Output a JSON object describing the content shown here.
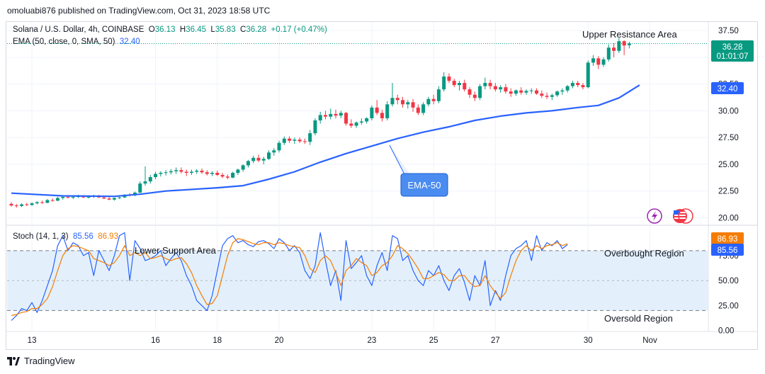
{
  "publisher": "omoluabi876 published on TradingView.com, Oct 31, 2023 18:58 UTC",
  "legend": {
    "symbol": "Solana / U.S. Dollar, 4h, COINBASE",
    "o_label": "O",
    "o": "36.13",
    "h_label": "H",
    "h": "36.45",
    "l_label": "L",
    "l": "35.83",
    "c_label": "C",
    "c": "36.28",
    "change": "+0.17 (+0.47%)",
    "ema_text": "EMA (50, close, 0, SMA, 50)",
    "ema_value": "32.40",
    "stoch_text": "Stoch (14, 1, 3)",
    "stoch_k": "85.56",
    "stoch_d": "86.93"
  },
  "annotations": {
    "upper_resistance": "Upper Resistance Area",
    "lower_support": "Lower Support Area",
    "overbought": "Overbought Region",
    "oversold": "Oversold Region",
    "ema_callout": "EMA-50"
  },
  "price_badges": {
    "last_price": "36.28",
    "countdown": "01:01:07",
    "ema_badge": "32.40"
  },
  "stoch_badges": {
    "d": "86.93",
    "k": "85.56"
  },
  "footer": {
    "brand": "TradingView"
  },
  "colors": {
    "up": "#089981",
    "down": "#f23645",
    "ema": "#2962ff",
    "stoch_k": "#2962ff",
    "stoch_d": "#f57c00",
    "band_fill": "#e3f0fb"
  },
  "icons": [
    "lightning-icon",
    "us-flag-icon",
    "tradingview-logo-icon"
  ],
  "chart_data": [
    {
      "type": "candlestick",
      "title": "Solana / U.S. Dollar, 4h, COINBASE",
      "x_ticks": [
        {
          "label": "13",
          "bar": 4
        },
        {
          "label": "16",
          "bar": 28
        },
        {
          "label": "18",
          "bar": 40
        },
        {
          "label": "20",
          "bar": 52
        },
        {
          "label": "23",
          "bar": 70
        },
        {
          "label": "25",
          "bar": 82
        },
        {
          "label": "27",
          "bar": 94
        },
        {
          "label": "30",
          "bar": 112
        },
        {
          "label": "Nov",
          "bar": 124
        }
      ],
      "y_ticks": [
        "20.00",
        "22.50",
        "25.00",
        "27.50",
        "30.00",
        "32.50",
        "35.00",
        "37.50"
      ],
      "ylim": [
        19.3,
        38.3
      ],
      "candles": [
        {
          "o": 21.3,
          "h": 21.45,
          "l": 21.05,
          "c": 21.15
        },
        {
          "o": 21.15,
          "h": 21.3,
          "l": 20.95,
          "c": 21.1
        },
        {
          "o": 21.1,
          "h": 21.35,
          "l": 21.0,
          "c": 21.25
        },
        {
          "o": 21.25,
          "h": 21.4,
          "l": 21.1,
          "c": 21.2
        },
        {
          "o": 21.2,
          "h": 21.45,
          "l": 21.1,
          "c": 21.35
        },
        {
          "o": 21.35,
          "h": 21.55,
          "l": 21.25,
          "c": 21.45
        },
        {
          "o": 21.45,
          "h": 21.6,
          "l": 21.3,
          "c": 21.4
        },
        {
          "o": 21.4,
          "h": 21.75,
          "l": 21.35,
          "c": 21.65
        },
        {
          "o": 21.65,
          "h": 21.8,
          "l": 21.5,
          "c": 21.6
        },
        {
          "o": 21.6,
          "h": 21.95,
          "l": 21.55,
          "c": 21.85
        },
        {
          "o": 21.85,
          "h": 22.0,
          "l": 21.7,
          "c": 21.95
        },
        {
          "o": 21.95,
          "h": 22.1,
          "l": 21.8,
          "c": 21.9
        },
        {
          "o": 21.9,
          "h": 22.05,
          "l": 21.75,
          "c": 21.95
        },
        {
          "o": 21.95,
          "h": 22.15,
          "l": 21.85,
          "c": 22.0
        },
        {
          "o": 22.0,
          "h": 22.1,
          "l": 21.85,
          "c": 21.9
        },
        {
          "o": 21.9,
          "h": 22.05,
          "l": 21.8,
          "c": 21.95
        },
        {
          "o": 21.95,
          "h": 22.15,
          "l": 21.85,
          "c": 22.05
        },
        {
          "o": 22.05,
          "h": 22.15,
          "l": 21.85,
          "c": 21.9
        },
        {
          "o": 21.9,
          "h": 22.0,
          "l": 21.75,
          "c": 21.8
        },
        {
          "o": 21.8,
          "h": 21.95,
          "l": 21.65,
          "c": 21.7
        },
        {
          "o": 21.7,
          "h": 21.9,
          "l": 21.6,
          "c": 21.85
        },
        {
          "o": 21.85,
          "h": 22.0,
          "l": 21.75,
          "c": 21.9
        },
        {
          "o": 21.9,
          "h": 22.2,
          "l": 21.85,
          "c": 22.15
        },
        {
          "o": 22.15,
          "h": 22.3,
          "l": 22.0,
          "c": 22.1
        },
        {
          "o": 22.1,
          "h": 22.45,
          "l": 22.0,
          "c": 22.35
        },
        {
          "o": 22.35,
          "h": 23.4,
          "l": 22.3,
          "c": 23.2
        },
        {
          "o": 23.2,
          "h": 24.8,
          "l": 23.0,
          "c": 23.4
        },
        {
          "o": 23.4,
          "h": 24.0,
          "l": 23.2,
          "c": 23.8
        },
        {
          "o": 23.8,
          "h": 24.3,
          "l": 23.6,
          "c": 24.1
        },
        {
          "o": 24.1,
          "h": 24.35,
          "l": 23.85,
          "c": 24.2
        },
        {
          "o": 24.2,
          "h": 24.45,
          "l": 23.95,
          "c": 24.25
        },
        {
          "o": 24.25,
          "h": 24.55,
          "l": 24.05,
          "c": 24.35
        },
        {
          "o": 24.35,
          "h": 24.7,
          "l": 24.1,
          "c": 24.45
        },
        {
          "o": 24.45,
          "h": 24.7,
          "l": 24.15,
          "c": 24.3
        },
        {
          "o": 24.3,
          "h": 24.5,
          "l": 23.9,
          "c": 24.2
        },
        {
          "o": 24.2,
          "h": 24.5,
          "l": 24.0,
          "c": 24.3
        },
        {
          "o": 24.3,
          "h": 24.55,
          "l": 24.1,
          "c": 24.4
        },
        {
          "o": 24.4,
          "h": 24.6,
          "l": 24.1,
          "c": 24.25
        },
        {
          "o": 24.25,
          "h": 24.45,
          "l": 23.95,
          "c": 24.1
        },
        {
          "o": 24.1,
          "h": 24.35,
          "l": 23.9,
          "c": 24.2
        },
        {
          "o": 24.2,
          "h": 24.4,
          "l": 23.9,
          "c": 24.0
        },
        {
          "o": 24.0,
          "h": 24.2,
          "l": 23.7,
          "c": 23.85
        },
        {
          "o": 23.85,
          "h": 24.05,
          "l": 23.6,
          "c": 23.75
        },
        {
          "o": 23.75,
          "h": 24.3,
          "l": 23.7,
          "c": 24.2
        },
        {
          "o": 24.2,
          "h": 24.6,
          "l": 24.0,
          "c": 24.5
        },
        {
          "o": 24.5,
          "h": 25.0,
          "l": 24.3,
          "c": 24.9
        },
        {
          "o": 24.9,
          "h": 25.4,
          "l": 24.7,
          "c": 25.3
        },
        {
          "o": 25.3,
          "h": 25.8,
          "l": 25.1,
          "c": 25.6
        },
        {
          "o": 25.6,
          "h": 25.9,
          "l": 25.2,
          "c": 25.35
        },
        {
          "o": 25.35,
          "h": 25.7,
          "l": 25.0,
          "c": 25.5
        },
        {
          "o": 25.5,
          "h": 26.3,
          "l": 25.4,
          "c": 26.1
        },
        {
          "o": 26.1,
          "h": 26.5,
          "l": 25.8,
          "c": 26.3
        },
        {
          "o": 26.3,
          "h": 27.2,
          "l": 26.1,
          "c": 27.0
        },
        {
          "o": 27.0,
          "h": 27.6,
          "l": 26.8,
          "c": 27.4
        },
        {
          "o": 27.4,
          "h": 27.6,
          "l": 27.0,
          "c": 27.2
        },
        {
          "o": 27.2,
          "h": 27.5,
          "l": 26.9,
          "c": 27.3
        },
        {
          "o": 27.3,
          "h": 27.5,
          "l": 27.0,
          "c": 27.15
        },
        {
          "o": 27.15,
          "h": 27.4,
          "l": 26.9,
          "c": 27.1
        },
        {
          "o": 27.1,
          "h": 28.2,
          "l": 26.8,
          "c": 27.9
        },
        {
          "o": 27.9,
          "h": 29.3,
          "l": 27.7,
          "c": 29.1
        },
        {
          "o": 29.1,
          "h": 29.9,
          "l": 28.8,
          "c": 29.6
        },
        {
          "o": 29.6,
          "h": 30.0,
          "l": 29.2,
          "c": 29.45
        },
        {
          "o": 29.45,
          "h": 30.2,
          "l": 29.2,
          "c": 29.7
        },
        {
          "o": 29.7,
          "h": 30.1,
          "l": 29.3,
          "c": 29.55
        },
        {
          "o": 29.55,
          "h": 30.0,
          "l": 29.3,
          "c": 29.8
        },
        {
          "o": 29.8,
          "h": 29.9,
          "l": 28.6,
          "c": 28.8
        },
        {
          "o": 28.8,
          "h": 29.2,
          "l": 28.4,
          "c": 28.6
        },
        {
          "o": 28.6,
          "h": 29.0,
          "l": 28.4,
          "c": 28.9
        },
        {
          "o": 28.9,
          "h": 29.3,
          "l": 28.7,
          "c": 29.0
        },
        {
          "o": 29.0,
          "h": 29.4,
          "l": 28.8,
          "c": 29.3
        },
        {
          "o": 29.3,
          "h": 30.5,
          "l": 29.1,
          "c": 30.3
        },
        {
          "o": 30.3,
          "h": 31.0,
          "l": 29.6,
          "c": 29.8
        },
        {
          "o": 29.8,
          "h": 30.1,
          "l": 29.0,
          "c": 29.3
        },
        {
          "o": 29.3,
          "h": 30.9,
          "l": 29.1,
          "c": 30.6
        },
        {
          "o": 30.6,
          "h": 32.6,
          "l": 30.4,
          "c": 31.2
        },
        {
          "o": 31.2,
          "h": 31.5,
          "l": 30.6,
          "c": 31.0
        },
        {
          "o": 31.0,
          "h": 31.3,
          "l": 30.3,
          "c": 30.6
        },
        {
          "o": 30.6,
          "h": 31.0,
          "l": 30.2,
          "c": 30.8
        },
        {
          "o": 30.8,
          "h": 31.1,
          "l": 29.9,
          "c": 30.3
        },
        {
          "o": 30.3,
          "h": 30.6,
          "l": 29.6,
          "c": 29.8
        },
        {
          "o": 29.8,
          "h": 30.8,
          "l": 29.6,
          "c": 30.6
        },
        {
          "o": 30.6,
          "h": 31.3,
          "l": 30.4,
          "c": 31.1
        },
        {
          "o": 31.1,
          "h": 31.5,
          "l": 30.6,
          "c": 30.9
        },
        {
          "o": 30.9,
          "h": 32.3,
          "l": 30.7,
          "c": 32.0
        },
        {
          "o": 32.0,
          "h": 33.6,
          "l": 31.8,
          "c": 33.2
        },
        {
          "o": 33.2,
          "h": 33.5,
          "l": 32.6,
          "c": 32.8
        },
        {
          "o": 32.8,
          "h": 33.0,
          "l": 32.2,
          "c": 32.4
        },
        {
          "o": 32.4,
          "h": 32.8,
          "l": 31.9,
          "c": 32.6
        },
        {
          "o": 32.6,
          "h": 32.9,
          "l": 31.8,
          "c": 32.0
        },
        {
          "o": 32.0,
          "h": 32.2,
          "l": 31.2,
          "c": 31.5
        },
        {
          "o": 31.5,
          "h": 31.8,
          "l": 30.9,
          "c": 31.2
        },
        {
          "o": 31.2,
          "h": 32.5,
          "l": 31.0,
          "c": 32.3
        },
        {
          "o": 32.3,
          "h": 33.1,
          "l": 32.0,
          "c": 32.6
        },
        {
          "o": 32.6,
          "h": 32.9,
          "l": 32.0,
          "c": 32.3
        },
        {
          "o": 32.3,
          "h": 32.6,
          "l": 31.8,
          "c": 32.0
        },
        {
          "o": 32.0,
          "h": 32.4,
          "l": 31.7,
          "c": 32.2
        },
        {
          "o": 32.2,
          "h": 32.5,
          "l": 31.6,
          "c": 31.8
        },
        {
          "o": 31.8,
          "h": 32.1,
          "l": 31.3,
          "c": 31.6
        },
        {
          "o": 31.6,
          "h": 32.0,
          "l": 31.4,
          "c": 31.9
        },
        {
          "o": 31.9,
          "h": 32.2,
          "l": 31.5,
          "c": 31.7
        },
        {
          "o": 31.7,
          "h": 32.0,
          "l": 31.5,
          "c": 31.85
        },
        {
          "o": 31.85,
          "h": 32.1,
          "l": 31.6,
          "c": 31.9
        },
        {
          "o": 31.9,
          "h": 32.1,
          "l": 31.5,
          "c": 31.6
        },
        {
          "o": 31.6,
          "h": 31.9,
          "l": 31.2,
          "c": 31.4
        },
        {
          "o": 31.4,
          "h": 31.7,
          "l": 31.1,
          "c": 31.3
        },
        {
          "o": 31.3,
          "h": 31.6,
          "l": 31.0,
          "c": 31.45
        },
        {
          "o": 31.45,
          "h": 31.9,
          "l": 31.3,
          "c": 31.8
        },
        {
          "o": 31.8,
          "h": 32.1,
          "l": 31.5,
          "c": 31.9
        },
        {
          "o": 31.9,
          "h": 32.4,
          "l": 31.7,
          "c": 32.3
        },
        {
          "o": 32.3,
          "h": 32.8,
          "l": 32.1,
          "c": 32.6
        },
        {
          "o": 32.6,
          "h": 32.8,
          "l": 32.2,
          "c": 32.4
        },
        {
          "o": 32.4,
          "h": 32.6,
          "l": 32.0,
          "c": 32.2
        },
        {
          "o": 32.2,
          "h": 34.7,
          "l": 32.1,
          "c": 34.5
        },
        {
          "o": 34.5,
          "h": 35.2,
          "l": 34.2,
          "c": 34.9
        },
        {
          "o": 34.9,
          "h": 35.1,
          "l": 33.9,
          "c": 34.3
        },
        {
          "o": 34.3,
          "h": 35.0,
          "l": 34.1,
          "c": 34.8
        },
        {
          "o": 34.8,
          "h": 36.2,
          "l": 34.6,
          "c": 35.9
        },
        {
          "o": 35.9,
          "h": 36.3,
          "l": 35.0,
          "c": 35.6
        },
        {
          "o": 35.6,
          "h": 36.8,
          "l": 35.4,
          "c": 36.5
        },
        {
          "o": 36.5,
          "h": 36.6,
          "l": 35.2,
          "c": 36.1
        },
        {
          "o": 36.13,
          "h": 36.45,
          "l": 35.83,
          "c": 36.28
        }
      ],
      "ema": [
        [
          0,
          22.3
        ],
        [
          10,
          22.05
        ],
        [
          20,
          22.0
        ],
        [
          25,
          22.2
        ],
        [
          30,
          22.5
        ],
        [
          40,
          22.8
        ],
        [
          45,
          23.0
        ],
        [
          50,
          23.6
        ],
        [
          55,
          24.3
        ],
        [
          60,
          25.2
        ],
        [
          65,
          26.0
        ],
        [
          70,
          26.7
        ],
        [
          75,
          27.4
        ],
        [
          80,
          28.0
        ],
        [
          85,
          28.5
        ],
        [
          90,
          29.1
        ],
        [
          95,
          29.5
        ],
        [
          100,
          29.8
        ],
        [
          105,
          30.0
        ],
        [
          110,
          30.3
        ],
        [
          114,
          30.5
        ],
        [
          118,
          31.2
        ],
        [
          122,
          32.4
        ]
      ]
    },
    {
      "type": "line",
      "title": "Stoch (14, 1, 3)",
      "y_ticks": [
        "0.00",
        "25.00",
        "50.00",
        "75.00"
      ],
      "ylim": [
        -1,
        104
      ],
      "levels": [
        80,
        20
      ],
      "series": [
        {
          "name": "%K",
          "values": [
            10,
            15,
            22,
            20,
            28,
            18,
            30,
            45,
            60,
            85,
            95,
            80,
            88,
            85,
            75,
            78,
            55,
            80,
            70,
            60,
            75,
            95,
            98,
            50,
            90,
            82,
            70,
            72,
            75,
            80,
            65,
            72,
            78,
            70,
            55,
            45,
            30,
            25,
            20,
            35,
            60,
            85,
            92,
            95,
            88,
            90,
            86,
            84,
            89,
            90,
            87,
            82,
            92,
            88,
            80,
            85,
            78,
            60,
            52,
            65,
            98,
            70,
            45,
            60,
            30,
            90,
            62,
            68,
            75,
            55,
            45,
            65,
            78,
            60,
            95,
            92,
            70,
            75,
            60,
            50,
            45,
            60,
            55,
            65,
            50,
            40,
            55,
            62,
            48,
            30,
            55,
            45,
            70,
            25,
            40,
            30,
            55,
            75,
            82,
            85,
            90,
            70,
            95,
            80,
            88,
            85,
            90,
            82,
            86
          ]
        },
        {
          "name": "%D",
          "values": [
            15,
            16,
            18,
            19,
            22,
            22,
            26,
            32,
            44,
            60,
            75,
            82,
            85,
            84,
            82,
            80,
            72,
            70,
            68,
            65,
            68,
            75,
            85,
            75,
            78,
            75,
            78,
            72,
            73,
            75,
            72,
            70,
            72,
            73,
            67,
            58,
            45,
            35,
            26,
            27,
            35,
            55,
            75,
            88,
            92,
            91,
            89,
            87,
            86,
            88,
            88,
            86,
            88,
            87,
            85,
            84,
            83,
            75,
            62,
            58,
            70,
            75,
            70,
            58,
            45,
            60,
            65,
            72,
            68,
            65,
            55,
            58,
            65,
            68,
            75,
            85,
            82,
            77,
            70,
            62,
            52,
            52,
            55,
            58,
            56,
            50,
            50,
            55,
            55,
            48,
            44,
            45,
            55,
            45,
            38,
            32,
            38,
            55,
            70,
            80,
            85,
            80,
            85,
            82,
            85,
            86,
            88,
            85,
            86.93
          ]
        }
      ]
    }
  ]
}
